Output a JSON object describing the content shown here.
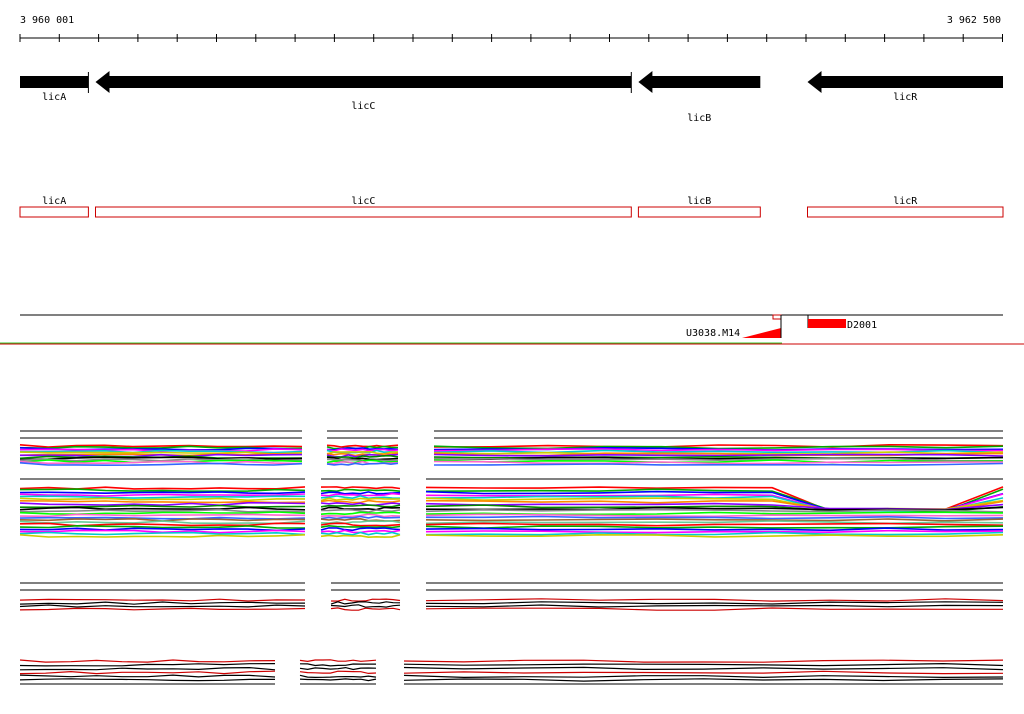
{
  "ruler": {
    "start_label": "3 960 001",
    "end_label": "3 962 500",
    "start_bp": 3960001,
    "end_bp": 3962500
  },
  "genes": [
    {
      "name": "licA",
      "start": 3960001,
      "end": 3960175,
      "strand": "-",
      "label_row": 1
    },
    {
      "name": "licC",
      "start": 3960193,
      "end": 3961555,
      "strand": "-",
      "label_row": 2
    },
    {
      "name": "licB",
      "start": 3961573,
      "end": 3961883,
      "strand": "-",
      "label_row": 3
    },
    {
      "name": "licR",
      "start": 3962003,
      "end": 3962500,
      "strand": "-",
      "label_row": 1
    }
  ],
  "features": [
    {
      "name": "U3038.M14",
      "type": "triangle"
    },
    {
      "name": "D2001",
      "type": "bar"
    }
  ],
  "colors": {
    "gene_arrow": "#000000",
    "gene_box": "#cc0000",
    "feature": "#ff0000",
    "forward_line": "#33cc33",
    "reverse_line": "#cc0000"
  }
}
